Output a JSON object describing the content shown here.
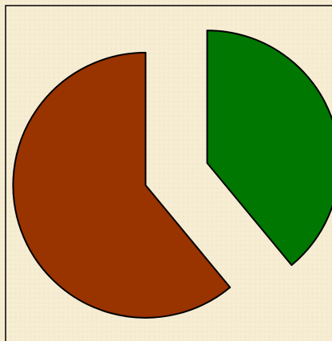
{
  "chart_data": {
    "type": "pie",
    "values": [
      39,
      61
    ],
    "colors": [
      "#007700",
      "#993300"
    ]
  }
}
